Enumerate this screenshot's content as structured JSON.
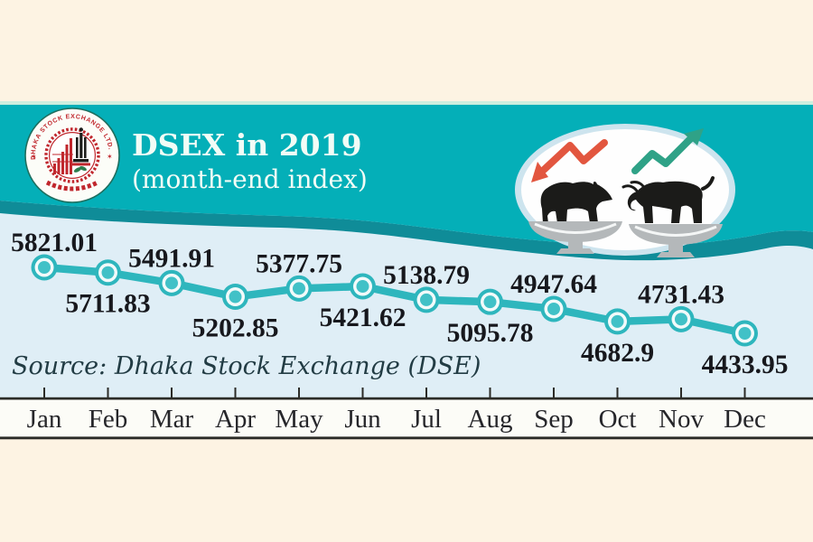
{
  "header": {
    "title": "DSEX in 2019",
    "subtitle": "(month-end index)"
  },
  "logo": {
    "ring_text": "DHAKA STOCK EXCHANGE LTD.",
    "ring_text_bottom": "ঢাকা স্টক এক্সচেঞ্জ লিঃ"
  },
  "illustration": {
    "down_trend_arrow_color": "#e2563f",
    "up_trend_arrow_color": "#2fa287",
    "animal_color": "#1b1b19",
    "scales_color": "#b4b8ba"
  },
  "source_note": "Source: Dhaka Stock Exchange (DSE)",
  "chart_data": {
    "type": "line",
    "title": "DSEX in 2019",
    "subtitle": "(month-end index)",
    "categories": [
      "Jan",
      "Feb",
      "Mar",
      "Apr",
      "May",
      "Jun",
      "Jul",
      "Aug",
      "Sep",
      "Oct",
      "Nov",
      "Dec"
    ],
    "series": [
      {
        "name": "DSEX month-end index",
        "values": [
          5821.01,
          5711.83,
          5491.91,
          5202.85,
          5377.75,
          5421.62,
          5138.79,
          5095.78,
          4947.64,
          4682.9,
          4731.43,
          4433.95
        ]
      }
    ],
    "xlabel": "",
    "ylabel": "",
    "ylim": [
      4300,
      5950
    ],
    "grid": false,
    "legend": "none",
    "point_labels_visible": true,
    "source": "Source: Dhaka Stock Exchange (DSE)"
  },
  "colors": {
    "band_teal": "#04afb8",
    "wave_dark_teal": "#0f8c98",
    "chart_bg": "#dfeef6",
    "page_cream": "#fdf3e3",
    "mint_strip": "#cdeede",
    "month_band": "#fcfcf7",
    "axis_dark": "#2b2b27",
    "line_teal": "#2eb6bd",
    "marker_inner": "#41c1c7",
    "marker_ring": "#f2fafa",
    "value_label": "#17181d",
    "month_label": "#26262a",
    "title_text": "#f2fcf6",
    "source_text": "#223c44",
    "logo_red": "#c0272d"
  }
}
